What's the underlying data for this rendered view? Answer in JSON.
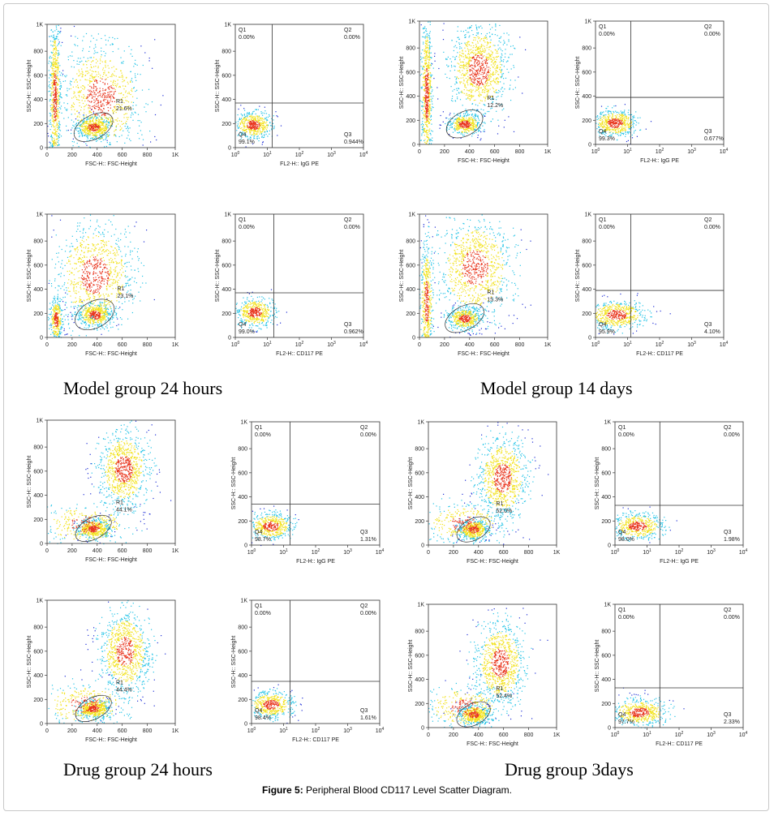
{
  "figure": {
    "caption_label": "Figure 5:",
    "caption_text": "Peripheral Blood CD117 Level Scatter Diagram.",
    "group_titles": [
      "Model group 24 hours",
      "Model group 14 days",
      "Drug group 24 hours",
      "Drug group 3days"
    ]
  },
  "colors": {
    "low": "#1f2fd6",
    "mid": "#22c3e6",
    "high": "#f2e21a",
    "peak": "#e8341c",
    "axis": "#333333"
  },
  "chart_data": [
    {
      "id": "mg24-iso-fsc",
      "type": "scatter",
      "subtype": "density",
      "xlabel": "FSC-H:: FSC-Height",
      "ylabel": "SSC-H:: SSC-Height",
      "xticks": [
        "0",
        "200",
        "400",
        "600",
        "800",
        "1K"
      ],
      "yticks": [
        "0",
        "200",
        "400",
        "600",
        "800",
        "1K"
      ],
      "xlim": [
        0,
        1023
      ],
      "ylim": [
        0,
        1023
      ],
      "gate": {
        "name": "R1",
        "percent": "21.6%"
      },
      "clusters": [
        {
          "x": 370,
          "y": 170,
          "sx": 70,
          "sy": 45,
          "n": 500
        },
        {
          "x": 430,
          "y": 420,
          "sx": 170,
          "sy": 230,
          "n": 950
        },
        {
          "x": 60,
          "y": 430,
          "sx": 22,
          "sy": 310,
          "n": 700
        }
      ]
    },
    {
      "id": "mg24-iso-fl2",
      "type": "scatter",
      "subtype": "quadrant",
      "xlabel": "FL2-H:: IgG PE",
      "ylabel": "SSC-H:: SSC-Height",
      "xticks": [
        "10^0",
        "10^1",
        "10^2",
        "10^3",
        "10^4"
      ],
      "yticks": [
        "0",
        "200",
        "400",
        "600",
        "800",
        "1K"
      ],
      "xlim": [
        0,
        4
      ],
      "ylim": [
        0,
        1023
      ],
      "xsplit": 1.15,
      "ysplit": 370,
      "quadrants": {
        "Q1": "0.00%",
        "Q2": "0.00%",
        "Q3": "0.944%",
        "Q4": "99.1%"
      },
      "clusters": [
        {
          "x": 0.55,
          "y": 190,
          "sx": 0.3,
          "sy": 55,
          "n": 500
        }
      ]
    },
    {
      "id": "mg14-iso-fsc",
      "type": "scatter",
      "subtype": "density",
      "xlabel": "FSC-H:: FSC-Height",
      "ylabel": "SSC-H:: SSC-Height",
      "xticks": [
        "0",
        "200",
        "400",
        "600",
        "800",
        "1K"
      ],
      "yticks": [
        "0",
        "200",
        "400",
        "600",
        "800",
        "1K"
      ],
      "xlim": [
        0,
        1023
      ],
      "ylim": [
        0,
        1023
      ],
      "gate": {
        "name": "R1",
        "percent": "12.2%"
      },
      "clusters": [
        {
          "x": 360,
          "y": 170,
          "sx": 65,
          "sy": 45,
          "n": 450
        },
        {
          "x": 470,
          "y": 620,
          "sx": 120,
          "sy": 190,
          "n": 1000
        },
        {
          "x": 55,
          "y": 420,
          "sx": 22,
          "sy": 320,
          "n": 700
        }
      ]
    },
    {
      "id": "mg14-iso-fl2",
      "type": "scatter",
      "subtype": "quadrant",
      "xlabel": "FL2-H:: IgG PE",
      "ylabel": "SSC-H:: SSC-Height",
      "xticks": [
        "10^0",
        "10^1",
        "10^2",
        "10^3",
        "10^4"
      ],
      "yticks": [
        "0",
        "200",
        "400",
        "600",
        "800",
        "1K"
      ],
      "xlim": [
        0,
        4
      ],
      "ylim": [
        0,
        1023
      ],
      "xsplit": 1.1,
      "ysplit": 390,
      "quadrants": {
        "Q1": "0.00%",
        "Q2": "0.00%",
        "Q3": "0.677%",
        "Q4": "99.3%"
      },
      "clusters": [
        {
          "x": 0.6,
          "y": 180,
          "sx": 0.35,
          "sy": 55,
          "n": 550
        }
      ]
    },
    {
      "id": "mg24-cd117-fsc",
      "type": "scatter",
      "subtype": "density",
      "xlabel": "FSC-H:: FSC-Height",
      "ylabel": "SSC-H:: SSC-Height",
      "xticks": [
        "0",
        "200",
        "400",
        "600",
        "800",
        "1K"
      ],
      "yticks": [
        "0",
        "200",
        "400",
        "600",
        "800",
        "1K"
      ],
      "xlim": [
        0,
        1023
      ],
      "ylim": [
        0,
        1023
      ],
      "gate": {
        "name": "R1",
        "percent": "23.1%"
      },
      "clusters": [
        {
          "x": 380,
          "y": 190,
          "sx": 70,
          "sy": 50,
          "n": 500
        },
        {
          "x": 380,
          "y": 520,
          "sx": 160,
          "sy": 220,
          "n": 950
        },
        {
          "x": 70,
          "y": 150,
          "sx": 25,
          "sy": 90,
          "n": 350
        }
      ]
    },
    {
      "id": "mg24-cd117-fl2",
      "type": "scatter",
      "subtype": "quadrant",
      "xlabel": "FL2-H:: CD117 PE",
      "ylabel": "SSC-H:: SSC-Height",
      "xticks": [
        "10^0",
        "10^1",
        "10^2",
        "10^3",
        "10^4"
      ],
      "yticks": [
        "0",
        "200",
        "400",
        "600",
        "800",
        "1K"
      ],
      "xlim": [
        0,
        4
      ],
      "ylim": [
        0,
        1023
      ],
      "xsplit": 1.2,
      "ysplit": 370,
      "quadrants": {
        "Q1": "0.00%",
        "Q2": "0.00%",
        "Q3": "0.962%",
        "Q4": "99.0%"
      },
      "clusters": [
        {
          "x": 0.6,
          "y": 210,
          "sx": 0.3,
          "sy": 60,
          "n": 500
        }
      ]
    },
    {
      "id": "mg14-cd117-fsc",
      "type": "scatter",
      "subtype": "density",
      "xlabel": "FSC-H:: FSC-Height",
      "ylabel": "SSC-H:: SSC-Height",
      "xticks": [
        "0",
        "200",
        "400",
        "600",
        "800",
        "1K"
      ],
      "yticks": [
        "0",
        "200",
        "400",
        "600",
        "800",
        "1K"
      ],
      "xlim": [
        0,
        1023
      ],
      "ylim": [
        0,
        1023
      ],
      "gate": {
        "name": "R1",
        "percent": "15.3%"
      },
      "clusters": [
        {
          "x": 360,
          "y": 160,
          "sx": 70,
          "sy": 45,
          "n": 450
        },
        {
          "x": 440,
          "y": 580,
          "sx": 150,
          "sy": 210,
          "n": 1000
        },
        {
          "x": 55,
          "y": 300,
          "sx": 25,
          "sy": 250,
          "n": 500
        }
      ]
    },
    {
      "id": "mg14-cd117-fl2",
      "type": "scatter",
      "subtype": "quadrant",
      "xlabel": "FL2-H:: CD117 PE",
      "ylabel": "SSC-H:: SSC-Height",
      "xticks": [
        "10^0",
        "10^1",
        "10^2",
        "10^3",
        "10^4"
      ],
      "yticks": [
        "0",
        "200",
        "400",
        "600",
        "800",
        "1K"
      ],
      "xlim": [
        0,
        4
      ],
      "ylim": [
        0,
        1023
      ],
      "xsplit": 1.1,
      "ysplit": 390,
      "quadrants": {
        "Q1": "0.00%",
        "Q2": "0.00%",
        "Q3": "4.10%",
        "Q4": "95.9%"
      },
      "clusters": [
        {
          "x": 0.65,
          "y": 190,
          "sx": 0.45,
          "sy": 60,
          "n": 600
        }
      ]
    },
    {
      "id": "dg24-iso-fsc",
      "type": "scatter",
      "subtype": "density",
      "xlabel": "FSC-H:: FSC-Height",
      "ylabel": "SSC-H:: SSC-Height",
      "xticks": [
        "0",
        "200",
        "400",
        "600",
        "800",
        "1K"
      ],
      "yticks": [
        "0",
        "200",
        "400",
        "600",
        "800",
        "1K"
      ],
      "xlim": [
        0,
        1023
      ],
      "ylim": [
        0,
        1023
      ],
      "gate": {
        "name": "R1",
        "percent": "44.1%"
      },
      "clusters": [
        {
          "x": 370,
          "y": 125,
          "sx": 65,
          "sy": 40,
          "n": 500
        },
        {
          "x": 610,
          "y": 620,
          "sx": 100,
          "sy": 160,
          "n": 900
        },
        {
          "x": 300,
          "y": 160,
          "sx": 180,
          "sy": 90,
          "n": 350
        }
      ]
    },
    {
      "id": "dg24-iso-fl2",
      "type": "scatter",
      "subtype": "quadrant",
      "xlabel": "FL2-H:: IgG PE",
      "ylabel": "SSC-H:: SSC-Height",
      "xticks": [
        "10^0",
        "10^1",
        "10^2",
        "10^3",
        "10^4"
      ],
      "yticks": [
        "0",
        "200",
        "400",
        "600",
        "800",
        "1K"
      ],
      "xlim": [
        0,
        4
      ],
      "ylim": [
        0,
        1023
      ],
      "xsplit": 1.2,
      "ysplit": 340,
      "quadrants": {
        "Q1": "0.00%",
        "Q2": "0.00%",
        "Q3": "1.31%",
        "Q4": "98.7%"
      },
      "clusters": [
        {
          "x": 0.6,
          "y": 160,
          "sx": 0.35,
          "sy": 55,
          "n": 500
        }
      ]
    },
    {
      "id": "dg3-iso-fsc",
      "type": "scatter",
      "subtype": "density",
      "xlabel": "FSC-H:: FSC-Height",
      "ylabel": "SSC-H:: SSC-Height",
      "xticks": [
        "0",
        "200",
        "400",
        "600",
        "800",
        "1K"
      ],
      "yticks": [
        "0",
        "200",
        "400",
        "600",
        "800",
        "1K"
      ],
      "xlim": [
        0,
        1023
      ],
      "ylim": [
        0,
        1023
      ],
      "gate": {
        "name": "R1",
        "percent": "52.0%"
      },
      "clusters": [
        {
          "x": 360,
          "y": 130,
          "sx": 60,
          "sy": 40,
          "n": 500
        },
        {
          "x": 590,
          "y": 560,
          "sx": 100,
          "sy": 170,
          "n": 900
        },
        {
          "x": 280,
          "y": 180,
          "sx": 160,
          "sy": 90,
          "n": 350
        }
      ]
    },
    {
      "id": "dg3-iso-fl2",
      "type": "scatter",
      "subtype": "quadrant",
      "xlabel": "FL2-H:: IgG PE",
      "ylabel": "SSC-H:: SSC-Height",
      "xticks": [
        "10^0",
        "10^1",
        "10^2",
        "10^3",
        "10^4"
      ],
      "yticks": [
        "0",
        "200",
        "400",
        "600",
        "800",
        "1K"
      ],
      "xlim": [
        0,
        4
      ],
      "ylim": [
        0,
        1023
      ],
      "xsplit": 1.4,
      "ysplit": 330,
      "quadrants": {
        "Q1": "0.00%",
        "Q2": "0.00%",
        "Q3": "1.98%",
        "Q4": "98.0%"
      },
      "clusters": [
        {
          "x": 0.7,
          "y": 160,
          "sx": 0.4,
          "sy": 55,
          "n": 500
        }
      ]
    },
    {
      "id": "dg24-cd117-fsc",
      "type": "scatter",
      "subtype": "density",
      "xlabel": "FSC-H:: FSC-Height",
      "ylabel": "SSC-H:: SSC-Height",
      "xticks": [
        "0",
        "200",
        "400",
        "600",
        "800",
        "1K"
      ],
      "yticks": [
        "0",
        "200",
        "400",
        "600",
        "800",
        "1K"
      ],
      "xlim": [
        0,
        1023
      ],
      "ylim": [
        0,
        1023
      ],
      "gate": {
        "name": "R1",
        "percent": "44.4%"
      },
      "clusters": [
        {
          "x": 370,
          "y": 125,
          "sx": 65,
          "sy": 40,
          "n": 500
        },
        {
          "x": 620,
          "y": 600,
          "sx": 100,
          "sy": 170,
          "n": 900
        },
        {
          "x": 300,
          "y": 160,
          "sx": 180,
          "sy": 90,
          "n": 350
        }
      ]
    },
    {
      "id": "dg24-cd117-fl2",
      "type": "scatter",
      "subtype": "quadrant",
      "xlabel": "FL2-H:: CD117 PE",
      "ylabel": "SSC-H:: SSC-Height",
      "xticks": [
        "10^0",
        "10^1",
        "10^2",
        "10^3",
        "10^4"
      ],
      "yticks": [
        "0",
        "200",
        "400",
        "600",
        "800",
        "1K"
      ],
      "xlim": [
        0,
        4
      ],
      "ylim": [
        0,
        1023
      ],
      "xsplit": 1.2,
      "ysplit": 350,
      "quadrants": {
        "Q1": "0.00%",
        "Q2": "0.00%",
        "Q3": "1.61%",
        "Q4": "98.4%"
      },
      "clusters": [
        {
          "x": 0.6,
          "y": 160,
          "sx": 0.35,
          "sy": 55,
          "n": 500
        }
      ]
    },
    {
      "id": "dg3-cd117-fsc",
      "type": "scatter",
      "subtype": "density",
      "xlabel": "FSC-H:: FSC-Height",
      "ylabel": "SSC-H:: SSC-Height",
      "xticks": [
        "0",
        "200",
        "400",
        "600",
        "800",
        "1K"
      ],
      "yticks": [
        "0",
        "200",
        "400",
        "600",
        "800",
        "1K"
      ],
      "xlim": [
        0,
        1023
      ],
      "ylim": [
        0,
        1023
      ],
      "gate": {
        "name": "R1",
        "percent": "52.4%"
      },
      "clusters": [
        {
          "x": 360,
          "y": 110,
          "sx": 60,
          "sy": 40,
          "n": 500
        },
        {
          "x": 570,
          "y": 540,
          "sx": 100,
          "sy": 170,
          "n": 900
        },
        {
          "x": 280,
          "y": 170,
          "sx": 160,
          "sy": 90,
          "n": 350
        }
      ]
    },
    {
      "id": "dg3-cd117-fl2",
      "type": "scatter",
      "subtype": "quadrant",
      "xlabel": "FL2-H:: CD117 PE",
      "ylabel": "SSC-H:: SSC-Height",
      "xticks": [
        "10^0",
        "10^1",
        "10^2",
        "10^3",
        "10^4"
      ],
      "yticks": [
        "0",
        "200",
        "400",
        "600",
        "800",
        "1K"
      ],
      "xlim": [
        0,
        4
      ],
      "ylim": [
        0,
        1023
      ],
      "xsplit": 1.4,
      "ysplit": 330,
      "quadrants": {
        "Q1": "0.00%",
        "Q2": "0.00%",
        "Q3": "2.33%",
        "Q4": "97.7%"
      },
      "clusters": [
        {
          "x": 0.75,
          "y": 130,
          "sx": 0.45,
          "sy": 55,
          "n": 550
        }
      ]
    }
  ]
}
